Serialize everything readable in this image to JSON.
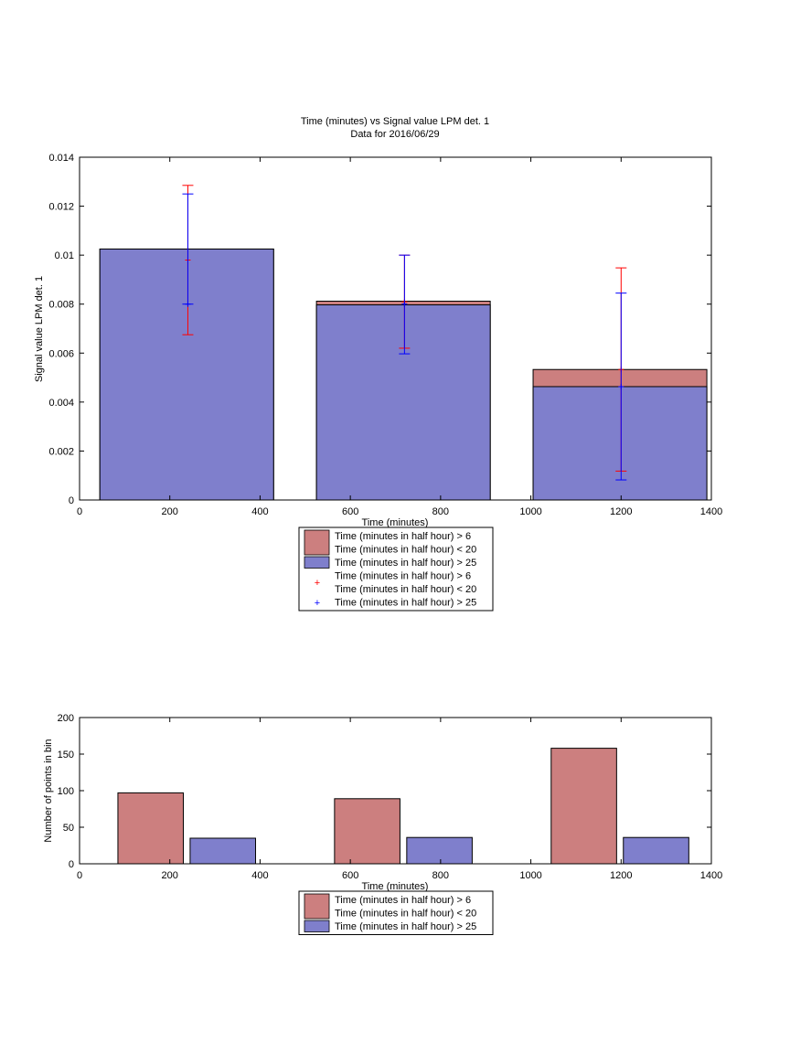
{
  "colors": {
    "red_bar": "#cc7f7f",
    "blue_bar": "#7f7fcc",
    "red_err": "#ff0000",
    "blue_err": "#0000ff"
  },
  "chart_data": [
    {
      "type": "bar",
      "title": "Time (minutes) vs Signal value LPM det. 1",
      "subtitle": "Data for 2016/06/29",
      "xlabel": "Time (minutes)",
      "ylabel": "Signal value LPM det. 1",
      "xlim": [
        0,
        1400
      ],
      "ylim": [
        0,
        0.014
      ],
      "xticks": [
        "0",
        "200",
        "400",
        "600",
        "800",
        "1000",
        "1200",
        "1400"
      ],
      "yticks": [
        "0",
        "0.002",
        "0.004",
        "0.006",
        "0.008",
        "0.01",
        "0.012",
        "0.014"
      ],
      "grid": false,
      "legend_position": "below",
      "bars": [
        {
          "x0": 45,
          "x1": 430,
          "red": 0.01025,
          "blue": 0.01025
        },
        {
          "x0": 525,
          "x1": 910,
          "red": 0.00812,
          "blue": 0.00797
        },
        {
          "x0": 1005,
          "x1": 1390,
          "red": 0.00533,
          "blue": 0.00463
        }
      ],
      "errorbars": [
        {
          "series": "red",
          "x": 240,
          "low": 0.00675,
          "high": 0.01285,
          "mid": 0.0098
        },
        {
          "series": "blue",
          "x": 240,
          "low": 0.008,
          "high": 0.0125,
          "mid": 0.008
        },
        {
          "series": "red",
          "x": 720,
          "low": 0.0062,
          "high": 0.01,
          "mid": 0.0081
        },
        {
          "series": "blue",
          "x": 720,
          "low": 0.00597,
          "high": 0.01,
          "mid": 0.008
        },
        {
          "series": "red",
          "x": 1200,
          "low": 0.00118,
          "high": 0.00948,
          "mid": 0.00533
        },
        {
          "series": "blue",
          "x": 1200,
          "low": 0.00082,
          "high": 0.00845,
          "mid": 0.00463
        }
      ],
      "legend": [
        {
          "kind": "patch",
          "color": "red",
          "lines": [
            "Time (minutes in half hour) > 6",
            "Time (minutes in half hour) < 20"
          ]
        },
        {
          "kind": "patch",
          "color": "blue",
          "lines": [
            "Time (minutes in half hour) > 25"
          ]
        },
        {
          "kind": "marker",
          "color": "red",
          "lines": [
            "Time (minutes in half hour) > 6",
            "Time (minutes in half hour) < 20"
          ]
        },
        {
          "kind": "marker",
          "color": "blue",
          "lines": [
            "Time (minutes in half hour) > 25"
          ]
        }
      ]
    },
    {
      "type": "bar",
      "title": "",
      "xlabel": "Time (minutes)",
      "ylabel": "Number of points in bin",
      "xlim": [
        0,
        1400
      ],
      "ylim": [
        0,
        200
      ],
      "xticks": [
        "0",
        "200",
        "400",
        "600",
        "800",
        "1000",
        "1200",
        "1400"
      ],
      "yticks": [
        "0",
        "50",
        "100",
        "150",
        "200"
      ],
      "grid": false,
      "legend_position": "below",
      "bars": [
        {
          "series": "red",
          "x0": 85,
          "x1": 230,
          "value": 97
        },
        {
          "series": "blue",
          "x0": 245,
          "x1": 390,
          "value": 35
        },
        {
          "series": "red",
          "x0": 565,
          "x1": 710,
          "value": 89
        },
        {
          "series": "blue",
          "x0": 725,
          "x1": 870,
          "value": 36
        },
        {
          "series": "red",
          "x0": 1045,
          "x1": 1190,
          "value": 158
        },
        {
          "series": "blue",
          "x0": 1205,
          "x1": 1350,
          "value": 36
        }
      ],
      "legend": [
        {
          "kind": "patch",
          "color": "red",
          "lines": [
            "Time (minutes in half hour) > 6",
            "Time (minutes in half hour) < 20"
          ]
        },
        {
          "kind": "patch",
          "color": "blue",
          "lines": [
            "Time (minutes in half hour) > 25"
          ]
        }
      ]
    }
  ]
}
